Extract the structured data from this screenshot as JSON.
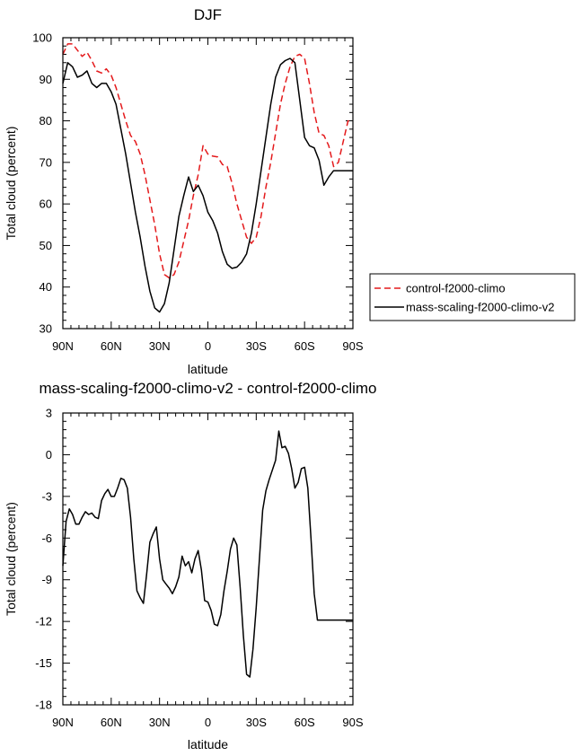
{
  "chart_data": [
    {
      "type": "line",
      "title": "DJF",
      "xlabel": "latitude",
      "ylabel": "Total cloud (percent)",
      "xlim": [
        90,
        -90
      ],
      "ylim": [
        30,
        100
      ],
      "x_ticks": [
        90,
        60,
        30,
        0,
        -30,
        -60,
        -90
      ],
      "x_tick_labels": [
        "90N",
        "60N",
        "30N",
        "0",
        "30S",
        "60S",
        "90S"
      ],
      "y_ticks": [
        30,
        40,
        50,
        60,
        70,
        80,
        90,
        100
      ],
      "y_tick_labels": [
        "30",
        "40",
        "50",
        "60",
        "70",
        "80",
        "90",
        "100"
      ],
      "legend_position": "right",
      "series": [
        {
          "name": "control-f2000-climo",
          "color": "#e41a1c",
          "dash": "dashed",
          "x": [
            90,
            87,
            84,
            81,
            78,
            75,
            72,
            69,
            66,
            63,
            60,
            57,
            54,
            51,
            48,
            45,
            42,
            39,
            36,
            33,
            30,
            27,
            24,
            21,
            18,
            15,
            12,
            9,
            6,
            3,
            0,
            -3,
            -6,
            -9,
            -12,
            -15,
            -18,
            -21,
            -24,
            -27,
            -30,
            -33,
            -36,
            -39,
            -42,
            -45,
            -48,
            -51,
            -54,
            -57,
            -60,
            -63,
            -66,
            -69,
            -72,
            -75,
            -78,
            -81,
            -84,
            -87,
            -90
          ],
          "y": [
            96,
            98.5,
            98.5,
            97,
            95.5,
            96.5,
            94.5,
            92,
            91.5,
            92.5,
            91,
            88,
            84,
            80,
            76.5,
            75,
            72,
            67,
            61,
            55,
            48,
            43,
            42.2,
            43,
            46,
            51,
            56,
            62,
            67,
            74,
            72,
            71.5,
            71.3,
            69.5,
            69,
            65,
            60,
            56,
            52,
            50.5,
            52,
            57,
            64,
            70,
            77,
            84,
            89,
            93,
            95.5,
            96,
            95,
            89,
            82,
            77,
            76.5,
            74,
            69,
            70,
            75,
            80,
            80
          ]
        },
        {
          "name": "mass-scaling-f2000-climo-v2",
          "color": "#000000",
          "dash": "solid",
          "x": [
            90,
            87,
            84,
            81,
            78,
            75,
            72,
            69,
            66,
            63,
            60,
            57,
            54,
            51,
            48,
            45,
            42,
            39,
            36,
            33,
            30,
            27,
            24,
            21,
            18,
            15,
            12,
            9,
            6,
            3,
            0,
            -3,
            -6,
            -9,
            -12,
            -15,
            -18,
            -21,
            -24,
            -27,
            -30,
            -33,
            -36,
            -39,
            -42,
            -45,
            -48,
            -51,
            -54,
            -57,
            -60,
            -63,
            -66,
            -69,
            -72,
            -75,
            -78,
            -81,
            -84,
            -87,
            -90
          ],
          "y": [
            89,
            94,
            93,
            90.5,
            91,
            92,
            89,
            88,
            89,
            89,
            87,
            84,
            78,
            72,
            65,
            58,
            52,
            45,
            39,
            35,
            34,
            36,
            41,
            49,
            57,
            62,
            66.5,
            63,
            64.5,
            62,
            58,
            56,
            53,
            48.5,
            45.5,
            44.5,
            44.8,
            46,
            48,
            53,
            60,
            68,
            76,
            84,
            90.5,
            93.5,
            94.5,
            95,
            94,
            85,
            76,
            74,
            73.5,
            70.5,
            64.5,
            66.5,
            68,
            68,
            68,
            68,
            68
          ]
        }
      ]
    },
    {
      "type": "line",
      "title": "mass-scaling-f2000-climo-v2 - control-f2000-climo",
      "xlabel": "latitude",
      "ylabel": "Total cloud (percent)",
      "xlim": [
        90,
        -90
      ],
      "ylim": [
        -18,
        3
      ],
      "x_ticks": [
        90,
        60,
        30,
        0,
        -30,
        -60,
        -90
      ],
      "x_tick_labels": [
        "90N",
        "60N",
        "30N",
        "0",
        "30S",
        "60S",
        "90S"
      ],
      "y_ticks": [
        -18,
        -15,
        -12,
        -9,
        -6,
        -3,
        0,
        3
      ],
      "y_tick_labels": [
        "-18",
        "-15",
        "-12",
        "-9",
        "-6",
        "-3",
        "0",
        "3"
      ],
      "series": [
        {
          "color": "#000000",
          "dash": "solid",
          "x": [
            90,
            88,
            86,
            84,
            82,
            80,
            78,
            76,
            74,
            72,
            70,
            68,
            66,
            64,
            62,
            60,
            58,
            56,
            54,
            52,
            50,
            48,
            46,
            44,
            42,
            40,
            38,
            36,
            34,
            32,
            30,
            28,
            26,
            24,
            22,
            20,
            18,
            16,
            14,
            12,
            10,
            8,
            6,
            4,
            2,
            0,
            -2,
            -4,
            -6,
            -8,
            -10,
            -12,
            -14,
            -16,
            -18,
            -20,
            -22,
            -24,
            -26,
            -28,
            -30,
            -32,
            -34,
            -36,
            -38,
            -40,
            -42,
            -44,
            -46,
            -48,
            -50,
            -52,
            -54,
            -56,
            -58,
            -60,
            -62,
            -64,
            -66,
            -68,
            -70,
            -72,
            -74,
            -76,
            -78,
            -80,
            -82,
            -84,
            -86,
            -88,
            -90
          ],
          "y": [
            -8,
            -4.8,
            -3.9,
            -4.3,
            -5,
            -5,
            -4.5,
            -4.1,
            -4.3,
            -4.2,
            -4.5,
            -4.6,
            -3.3,
            -2.8,
            -2.5,
            -3,
            -3,
            -2.4,
            -1.7,
            -1.8,
            -2.4,
            -4.5,
            -7.5,
            -9.8,
            -10.3,
            -10.7,
            -8.6,
            -6.3,
            -5.7,
            -5.2,
            -7.5,
            -9,
            -9.3,
            -9.6,
            -10,
            -9.5,
            -8.8,
            -7.3,
            -8,
            -7.7,
            -8.5,
            -7.5,
            -6.9,
            -8.3,
            -10.5,
            -10.6,
            -11.2,
            -12.2,
            -12.3,
            -11.5,
            -9.8,
            -8.4,
            -6.8,
            -6,
            -6.5,
            -9.5,
            -13,
            -15.8,
            -16,
            -14,
            -11,
            -7.5,
            -4,
            -2.6,
            -1.8,
            -1.1,
            -0.4,
            1.7,
            0.5,
            0.6,
            0.1,
            -1,
            -2.4,
            -2,
            -1,
            -0.9,
            -2.4,
            -6,
            -10,
            -11.9,
            -11.9,
            -11.9,
            -11.9,
            -11.9,
            -11.9,
            -11.9,
            -11.9,
            -11.9,
            -11.9,
            -11.9,
            -11.9
          ]
        }
      ]
    }
  ]
}
